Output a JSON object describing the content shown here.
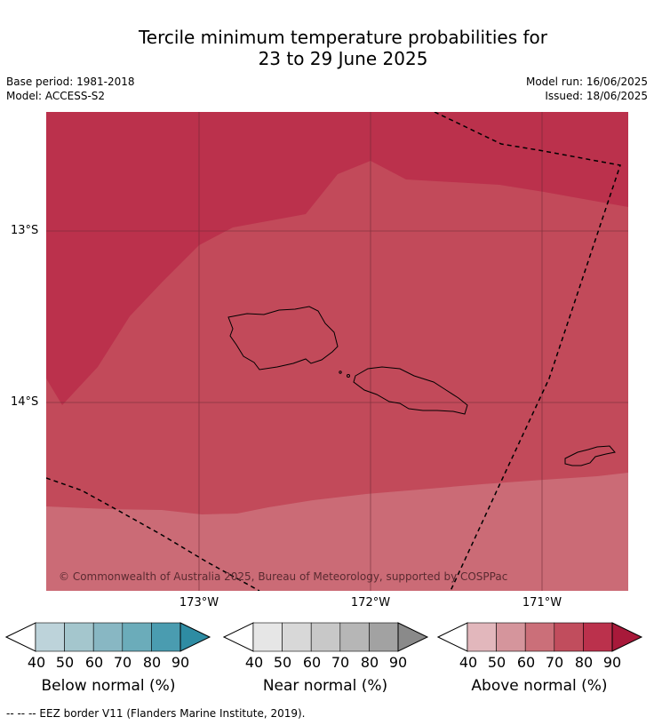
{
  "title": {
    "line1": "Tercile minimum temperature probabilities for",
    "line2": "23 to 29 June 2025"
  },
  "meta": {
    "base_period": "Base period: 1981-2018",
    "model": "Model: ACCESS-S2",
    "model_run": "Model run: 16/06/2025",
    "issued": "Issued: 18/06/2025"
  },
  "map": {
    "lat_labels": [
      "13°S",
      "14°S"
    ],
    "lon_labels": [
      "173°W",
      "172°W",
      "171°W"
    ],
    "copyright": "© Commonwealth of Australia 2025, Bureau of Meteorology, supported by COSPPac",
    "colors": {
      "above_80_90": "#bb314c",
      "above_70_80": "#c24a5a",
      "above_60_70": "#cb6b76"
    }
  },
  "legends": [
    {
      "label": "Below normal (%)",
      "ticks": [
        "40",
        "50",
        "60",
        "70",
        "80",
        "90"
      ],
      "colors": [
        "#bdd3da",
        "#a4c6cd",
        "#88b7c3",
        "#6bacba",
        "#4a9cb0",
        "#2e8ca3"
      ]
    },
    {
      "label": "Near normal (%)",
      "ticks": [
        "40",
        "50",
        "60",
        "70",
        "80",
        "90"
      ],
      "colors": [
        "#e6e6e6",
        "#d8d8d8",
        "#c8c8c8",
        "#b6b6b6",
        "#a2a2a2",
        "#8a8a8a"
      ]
    },
    {
      "label": "Above normal (%)",
      "ticks": [
        "40",
        "50",
        "60",
        "70",
        "80",
        "90"
      ],
      "colors": [
        "#e2b7bc",
        "#d5959c",
        "#cb6f79",
        "#c14d5d",
        "#bb314c",
        "#a8193a"
      ]
    }
  ],
  "footnote": "--  --  -- EEZ border V11 (Flanders Marine Institute, 2019)."
}
